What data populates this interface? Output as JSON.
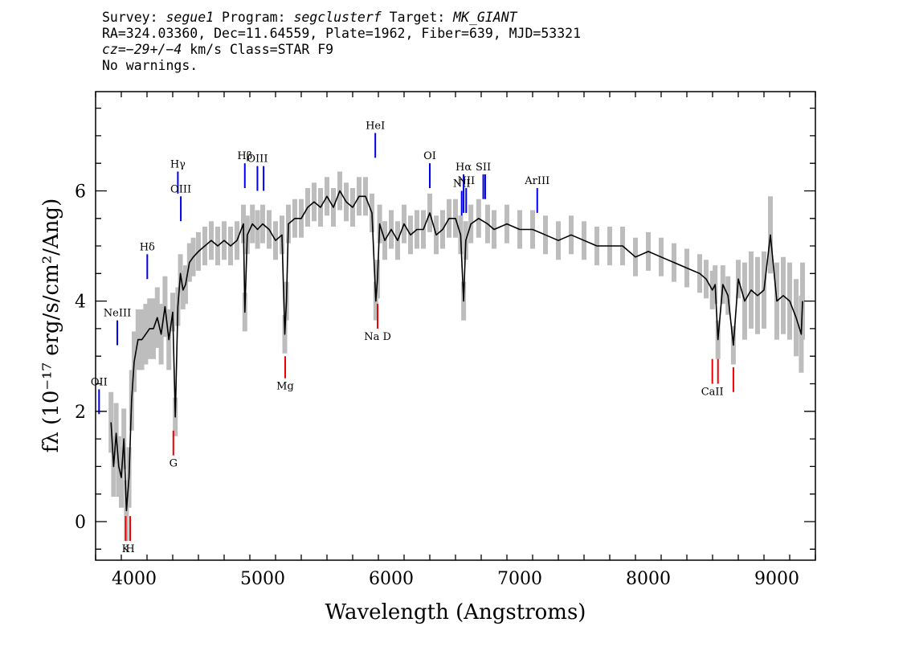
{
  "header": {
    "line1": {
      "survey_label": "Survey: ",
      "survey": "segue1",
      "program_label": " Program: ",
      "program": "segclusterf",
      "target_label": " Target: ",
      "target": "MK_GIANT"
    },
    "line2": "RA=324.03360, Dec=11.64559, Plate=1962, Fiber=639, MJD=53321",
    "line3": {
      "cz_label": "cz",
      "cz_value": "=−29+/−4",
      "cz_rest": " km/s Class=STAR F9"
    },
    "line4": "No warnings."
  },
  "chart_data": {
    "type": "line",
    "title": "",
    "xlabel": "Wavelength (Angstroms)",
    "ylabel": "fλ (10⁻¹⁷ erg/s/cm²/Ang)",
    "xlim": [
      3700,
      9300
    ],
    "ylim": [
      -0.7,
      7.8
    ],
    "x_ticks": [
      4000,
      5000,
      6000,
      7000,
      8000,
      9000
    ],
    "y_ticks": [
      0,
      2,
      4,
      6
    ],
    "grid": false,
    "legend": "none",
    "colors": {
      "flux": "#000000",
      "noise": "#bdbdbd",
      "emission": "#0000ee",
      "absorption": "#ee0000"
    },
    "series": [
      {
        "name": "flux",
        "x": [
          3820,
          3840,
          3860,
          3880,
          3900,
          3920,
          3940,
          3960,
          3980,
          4000,
          4030,
          4060,
          4090,
          4120,
          4150,
          4180,
          4210,
          4240,
          4270,
          4300,
          4320,
          4340,
          4360,
          4380,
          4400,
          4430,
          4460,
          4500,
          4550,
          4600,
          4650,
          4700,
          4750,
          4800,
          4850,
          4861,
          4880,
          4920,
          4960,
          5000,
          5050,
          5100,
          5150,
          5172,
          5185,
          5200,
          5250,
          5300,
          5350,
          5400,
          5450,
          5500,
          5550,
          5600,
          5650,
          5700,
          5750,
          5800,
          5850,
          5880,
          5893,
          5910,
          5950,
          6000,
          6050,
          6100,
          6150,
          6200,
          6250,
          6300,
          6350,
          6400,
          6450,
          6500,
          6540,
          6563,
          6580,
          6620,
          6680,
          6750,
          6800,
          6900,
          7000,
          7100,
          7200,
          7300,
          7400,
          7500,
          7600,
          7700,
          7800,
          7900,
          8000,
          8100,
          8200,
          8300,
          8400,
          8450,
          8498,
          8520,
          8542,
          8580,
          8620,
          8662,
          8700,
          8750,
          8800,
          8850,
          8900,
          8950,
          9000,
          9050,
          9100,
          9150,
          9190,
          9200
        ],
        "y": [
          1.8,
          1.0,
          1.6,
          1.0,
          0.8,
          1.5,
          0.2,
          0.8,
          2.2,
          2.9,
          3.3,
          3.3,
          3.4,
          3.5,
          3.5,
          3.7,
          3.4,
          3.9,
          3.3,
          3.8,
          1.9,
          3.9,
          4.5,
          4.2,
          4.3,
          4.7,
          4.8,
          4.9,
          5.0,
          5.1,
          5.0,
          5.1,
          5.0,
          5.1,
          5.4,
          3.8,
          5.2,
          5.4,
          5.3,
          5.4,
          5.3,
          5.1,
          5.2,
          3.4,
          4.0,
          5.4,
          5.5,
          5.5,
          5.7,
          5.8,
          5.7,
          5.9,
          5.7,
          6.0,
          5.8,
          5.7,
          5.9,
          5.9,
          5.6,
          4.0,
          4.4,
          5.4,
          5.1,
          5.3,
          5.1,
          5.4,
          5.2,
          5.3,
          5.3,
          5.6,
          5.2,
          5.3,
          5.5,
          5.5,
          5.2,
          4.0,
          5.1,
          5.4,
          5.5,
          5.4,
          5.3,
          5.4,
          5.3,
          5.3,
          5.2,
          5.1,
          5.2,
          5.1,
          5.0,
          5.0,
          5.0,
          4.8,
          4.9,
          4.8,
          4.7,
          4.6,
          4.5,
          4.4,
          4.2,
          4.3,
          3.3,
          4.3,
          4.1,
          3.2,
          4.4,
          4.0,
          4.2,
          4.1,
          4.2,
          5.2,
          4.0,
          4.1,
          4.0,
          3.7,
          3.4,
          4.0
        ]
      }
    ],
    "emission_lines": [
      {
        "label": "OII",
        "x": 3727,
        "y_top": 2.4,
        "y_bottom": 1.95
      },
      {
        "label": "NeIII",
        "x": 3869,
        "y_top": 3.65,
        "y_bottom": 3.2
      },
      {
        "label": "Hδ",
        "x": 4102,
        "y_top": 4.85,
        "y_bottom": 4.4
      },
      {
        "label": "Hγ",
        "x": 4340,
        "y_top": 6.35,
        "y_bottom": 5.95
      },
      {
        "label": "OIII",
        "x": 4363,
        "y_top": 5.9,
        "y_bottom": 5.45
      },
      {
        "label": "Hβ",
        "x": 4861,
        "y_top": 6.5,
        "y_bottom": 6.05
      },
      {
        "label": "OIII",
        "x": 4959,
        "y_top": 6.45,
        "y_bottom": 6.0
      },
      {
        "label": "",
        "x": 5007,
        "y_top": 6.45,
        "y_bottom": 6.0
      },
      {
        "label": "HeI",
        "x": 5876,
        "y_top": 7.05,
        "y_bottom": 6.6
      },
      {
        "label": "OI",
        "x": 6300,
        "y_top": 6.5,
        "y_bottom": 6.05
      },
      {
        "label": "NII",
        "x": 6548,
        "y_top": 6.0,
        "y_bottom": 5.55
      },
      {
        "label": "Hα",
        "x": 6563,
        "y_top": 6.3,
        "y_bottom": 5.6
      },
      {
        "label": "NII",
        "x": 6583,
        "y_top": 6.05,
        "y_bottom": 5.6
      },
      {
        "label": "SII",
        "x": 6716,
        "y_top": 6.3,
        "y_bottom": 5.85
      },
      {
        "label": "",
        "x": 6731,
        "y_top": 6.3,
        "y_bottom": 5.85
      },
      {
        "label": "ArIII",
        "x": 7136,
        "y_top": 6.05,
        "y_bottom": 5.6
      }
    ],
    "absorption_lines": [
      {
        "label": "K",
        "x": 3934,
        "y_top": 0.1,
        "y_bottom": -0.35
      },
      {
        "label": "H",
        "x": 3969,
        "y_top": 0.1,
        "y_bottom": -0.35
      },
      {
        "label": "G",
        "x": 4305,
        "y_top": 1.65,
        "y_bottom": 1.2
      },
      {
        "label": "Mg",
        "x": 5175,
        "y_top": 3.0,
        "y_bottom": 2.6
      },
      {
        "label": "Na D",
        "x": 5894,
        "y_top": 3.95,
        "y_bottom": 3.5
      },
      {
        "label": "CaII",
        "x": 8498,
        "y_top": 2.95,
        "y_bottom": 2.5
      },
      {
        "label": "",
        "x": 8542,
        "y_top": 2.95,
        "y_bottom": 2.5
      },
      {
        "label": "",
        "x": 8662,
        "y_top": 2.8,
        "y_bottom": 2.35
      }
    ]
  }
}
